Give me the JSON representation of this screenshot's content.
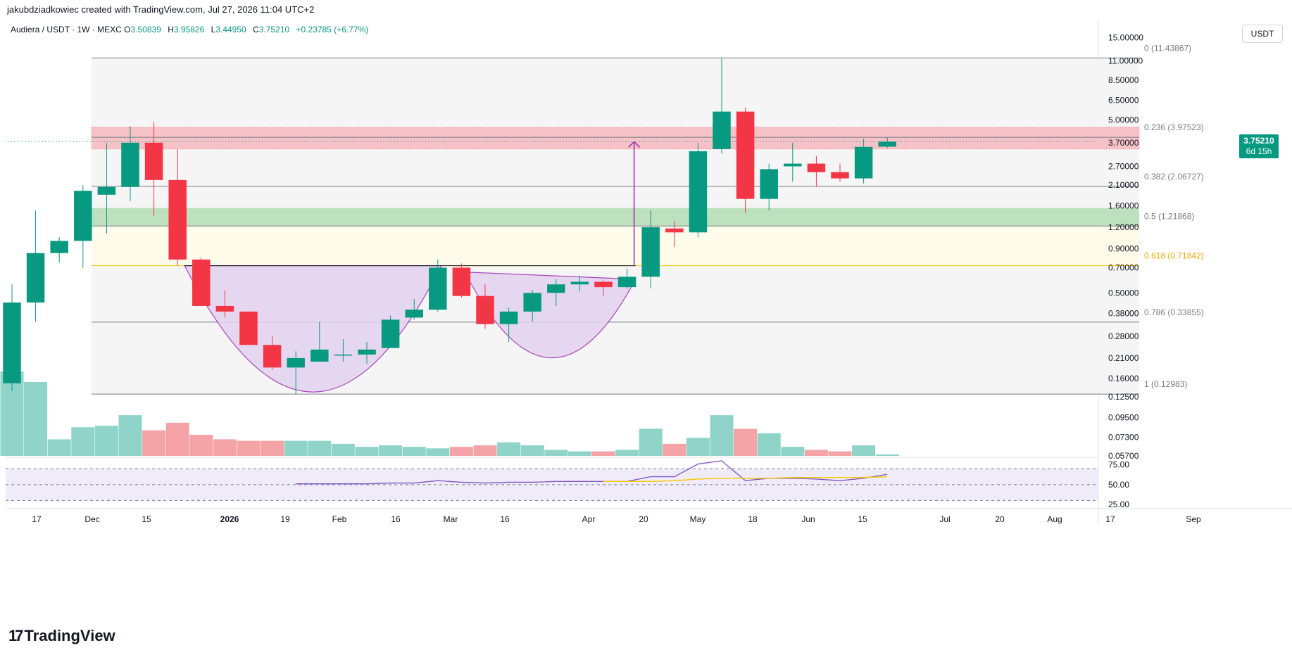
{
  "header": {
    "credit": "jakubdziadkowiec created with TradingView.com, Jul 27, 2026 11:04 UTC+2",
    "symbol": "Audiera / USDT · 1W · MEXC",
    "o_label": "O",
    "o_value": "3.50839",
    "h_label": "H",
    "h_value": "3.95826",
    "l_label": "L",
    "l_value": "3.44950",
    "c_label": "C",
    "c_value": "3.75210",
    "change": "+0.23785 (+6.77%)"
  },
  "currency_button": "USDT",
  "price_tag": {
    "value": "3.75210",
    "countdown": "6d 15h"
  },
  "footer": {
    "brand": "TradingView"
  },
  "colors": {
    "up": "#089981",
    "down": "#f23645",
    "vol_up": "#8fd3c9",
    "vol_down": "#f4a3a6",
    "resistance_zone": "#f7b6bc",
    "support_zone": "#b7dfb9",
    "cup_fill": "#e3d2ee",
    "cup_stroke": "#9c27b0",
    "fib_618": "#f7c600",
    "rsi": "#7e57c2",
    "rsi_ma": "#f7c600"
  },
  "chart_data": {
    "type": "candlestick",
    "scale": "log",
    "y_ticks": [
      "15.00000",
      "11.00000",
      "8.50000",
      "6.50000",
      "5.00000",
      "3.70000",
      "2.70000",
      "2.10000",
      "1.60000",
      "1.20000",
      "0.90000",
      "0.70000",
      "0.50000",
      "0.38000",
      "0.28000",
      "0.21000",
      "0.16000",
      "0.12500",
      "0.09500",
      "0.07300",
      "0.05700"
    ],
    "x_ticks": [
      "17",
      "Dec",
      "15",
      "2026",
      "19",
      "Feb",
      "16",
      "Mar",
      "16",
      "Apr",
      "20",
      "May",
      "18",
      "Jun",
      "15",
      "Jul",
      "20",
      "Aug",
      "17",
      "Sep"
    ],
    "ylim": [
      0.057,
      15.5
    ],
    "candles": [
      {
        "o": 0.15,
        "h": 0.56,
        "l": 0.135,
        "c": 0.44
      },
      {
        "o": 0.44,
        "h": 1.5,
        "l": 0.34,
        "c": 0.85
      },
      {
        "o": 0.85,
        "h": 1.05,
        "l": 0.75,
        "c": 1.0
      },
      {
        "o": 1.0,
        "h": 2.1,
        "l": 0.7,
        "c": 1.95
      },
      {
        "o": 1.85,
        "h": 3.7,
        "l": 1.1,
        "c": 2.05
      },
      {
        "o": 2.05,
        "h": 4.6,
        "l": 1.7,
        "c": 3.7
      },
      {
        "o": 3.7,
        "h": 4.9,
        "l": 1.4,
        "c": 2.25
      },
      {
        "o": 2.25,
        "h": 3.4,
        "l": 0.72,
        "c": 0.78
      },
      {
        "o": 0.78,
        "h": 0.8,
        "l": 0.42,
        "c": 0.42
      },
      {
        "o": 0.42,
        "h": 0.52,
        "l": 0.36,
        "c": 0.39
      },
      {
        "o": 0.39,
        "h": 0.39,
        "l": 0.25,
        "c": 0.25
      },
      {
        "o": 0.25,
        "h": 0.28,
        "l": 0.18,
        "c": 0.185
      },
      {
        "o": 0.185,
        "h": 0.23,
        "l": 0.13,
        "c": 0.21
      },
      {
        "o": 0.2,
        "h": 0.34,
        "l": 0.2,
        "c": 0.235
      },
      {
        "o": 0.22,
        "h": 0.27,
        "l": 0.2,
        "c": 0.22
      },
      {
        "o": 0.22,
        "h": 0.26,
        "l": 0.195,
        "c": 0.235
      },
      {
        "o": 0.24,
        "h": 0.37,
        "l": 0.24,
        "c": 0.35
      },
      {
        "o": 0.36,
        "h": 0.46,
        "l": 0.35,
        "c": 0.4
      },
      {
        "o": 0.4,
        "h": 0.78,
        "l": 0.39,
        "c": 0.7
      },
      {
        "o": 0.7,
        "h": 0.74,
        "l": 0.47,
        "c": 0.48
      },
      {
        "o": 0.48,
        "h": 0.56,
        "l": 0.31,
        "c": 0.33
      },
      {
        "o": 0.33,
        "h": 0.41,
        "l": 0.26,
        "c": 0.39
      },
      {
        "o": 0.39,
        "h": 0.52,
        "l": 0.34,
        "c": 0.5
      },
      {
        "o": 0.5,
        "h": 0.6,
        "l": 0.42,
        "c": 0.56
      },
      {
        "o": 0.56,
        "h": 0.63,
        "l": 0.51,
        "c": 0.58
      },
      {
        "o": 0.58,
        "h": 0.59,
        "l": 0.48,
        "c": 0.54
      },
      {
        "o": 0.54,
        "h": 0.69,
        "l": 0.53,
        "c": 0.62
      },
      {
        "o": 0.62,
        "h": 1.5,
        "l": 0.53,
        "c": 1.2
      },
      {
        "o": 1.18,
        "h": 1.3,
        "l": 0.92,
        "c": 1.12
      },
      {
        "o": 1.12,
        "h": 3.7,
        "l": 1.05,
        "c": 3.3
      },
      {
        "o": 3.4,
        "h": 11.4,
        "l": 3.2,
        "c": 5.6
      },
      {
        "o": 5.6,
        "h": 5.9,
        "l": 1.45,
        "c": 1.75
      },
      {
        "o": 1.75,
        "h": 2.8,
        "l": 1.5,
        "c": 2.6
      },
      {
        "o": 2.7,
        "h": 3.7,
        "l": 2.2,
        "c": 2.8
      },
      {
        "o": 2.8,
        "h": 3.1,
        "l": 2.05,
        "c": 2.5
      },
      {
        "o": 2.5,
        "h": 2.8,
        "l": 2.2,
        "c": 2.3
      },
      {
        "o": 2.3,
        "h": 3.9,
        "l": 2.15,
        "c": 3.5
      },
      {
        "o": 3.50839,
        "h": 3.95826,
        "l": 3.4495,
        "c": 3.7521
      }
    ],
    "volume": [
      0.56,
      0.49,
      0.11,
      0.19,
      0.2,
      0.27,
      0.17,
      0.22,
      0.14,
      0.11,
      0.1,
      0.1,
      0.1,
      0.1,
      0.08,
      0.06,
      0.07,
      0.06,
      0.05,
      0.06,
      0.07,
      0.09,
      0.07,
      0.04,
      0.03,
      0.03,
      0.04,
      0.18,
      0.08,
      0.12,
      0.27,
      0.18,
      0.15,
      0.06,
      0.04,
      0.03,
      0.07,
      0.01
    ],
    "fib_levels": [
      {
        "label": "0 (11.43867)",
        "value": 11.43867
      },
      {
        "label": "0.236 (3.97523)",
        "value": 3.97523
      },
      {
        "label": "0.382 (2.06727)",
        "value": 2.06727
      },
      {
        "label": "0.5 (1.21868)",
        "value": 1.21868
      },
      {
        "label": "0.618 (0.71842)",
        "value": 0.71842
      },
      {
        "label": "0.786 (0.33855)",
        "value": 0.33855
      },
      {
        "label": "1 (0.12983)",
        "value": 0.12983
      }
    ],
    "resistance_zone": [
      3.4,
      4.55
    ],
    "support_zone": [
      1.22,
      1.55
    ],
    "rsi": {
      "ticks": [
        "75.00",
        "50.00",
        "25.00"
      ],
      "levels": [
        70,
        50,
        30
      ],
      "values": [
        null,
        null,
        null,
        null,
        null,
        null,
        null,
        null,
        null,
        null,
        null,
        null,
        51,
        51,
        51,
        51,
        52,
        52,
        55,
        53,
        52,
        53,
        53,
        54,
        54,
        54,
        54,
        60,
        60,
        76,
        80,
        55,
        58,
        58,
        57,
        55,
        58,
        63
      ],
      "ma": [
        null,
        null,
        null,
        null,
        null,
        null,
        null,
        null,
        null,
        null,
        null,
        null,
        null,
        null,
        null,
        null,
        null,
        null,
        null,
        null,
        null,
        null,
        null,
        null,
        null,
        54,
        54,
        54,
        55,
        57,
        58,
        58,
        58,
        59,
        59,
        59,
        59,
        60
      ]
    }
  }
}
